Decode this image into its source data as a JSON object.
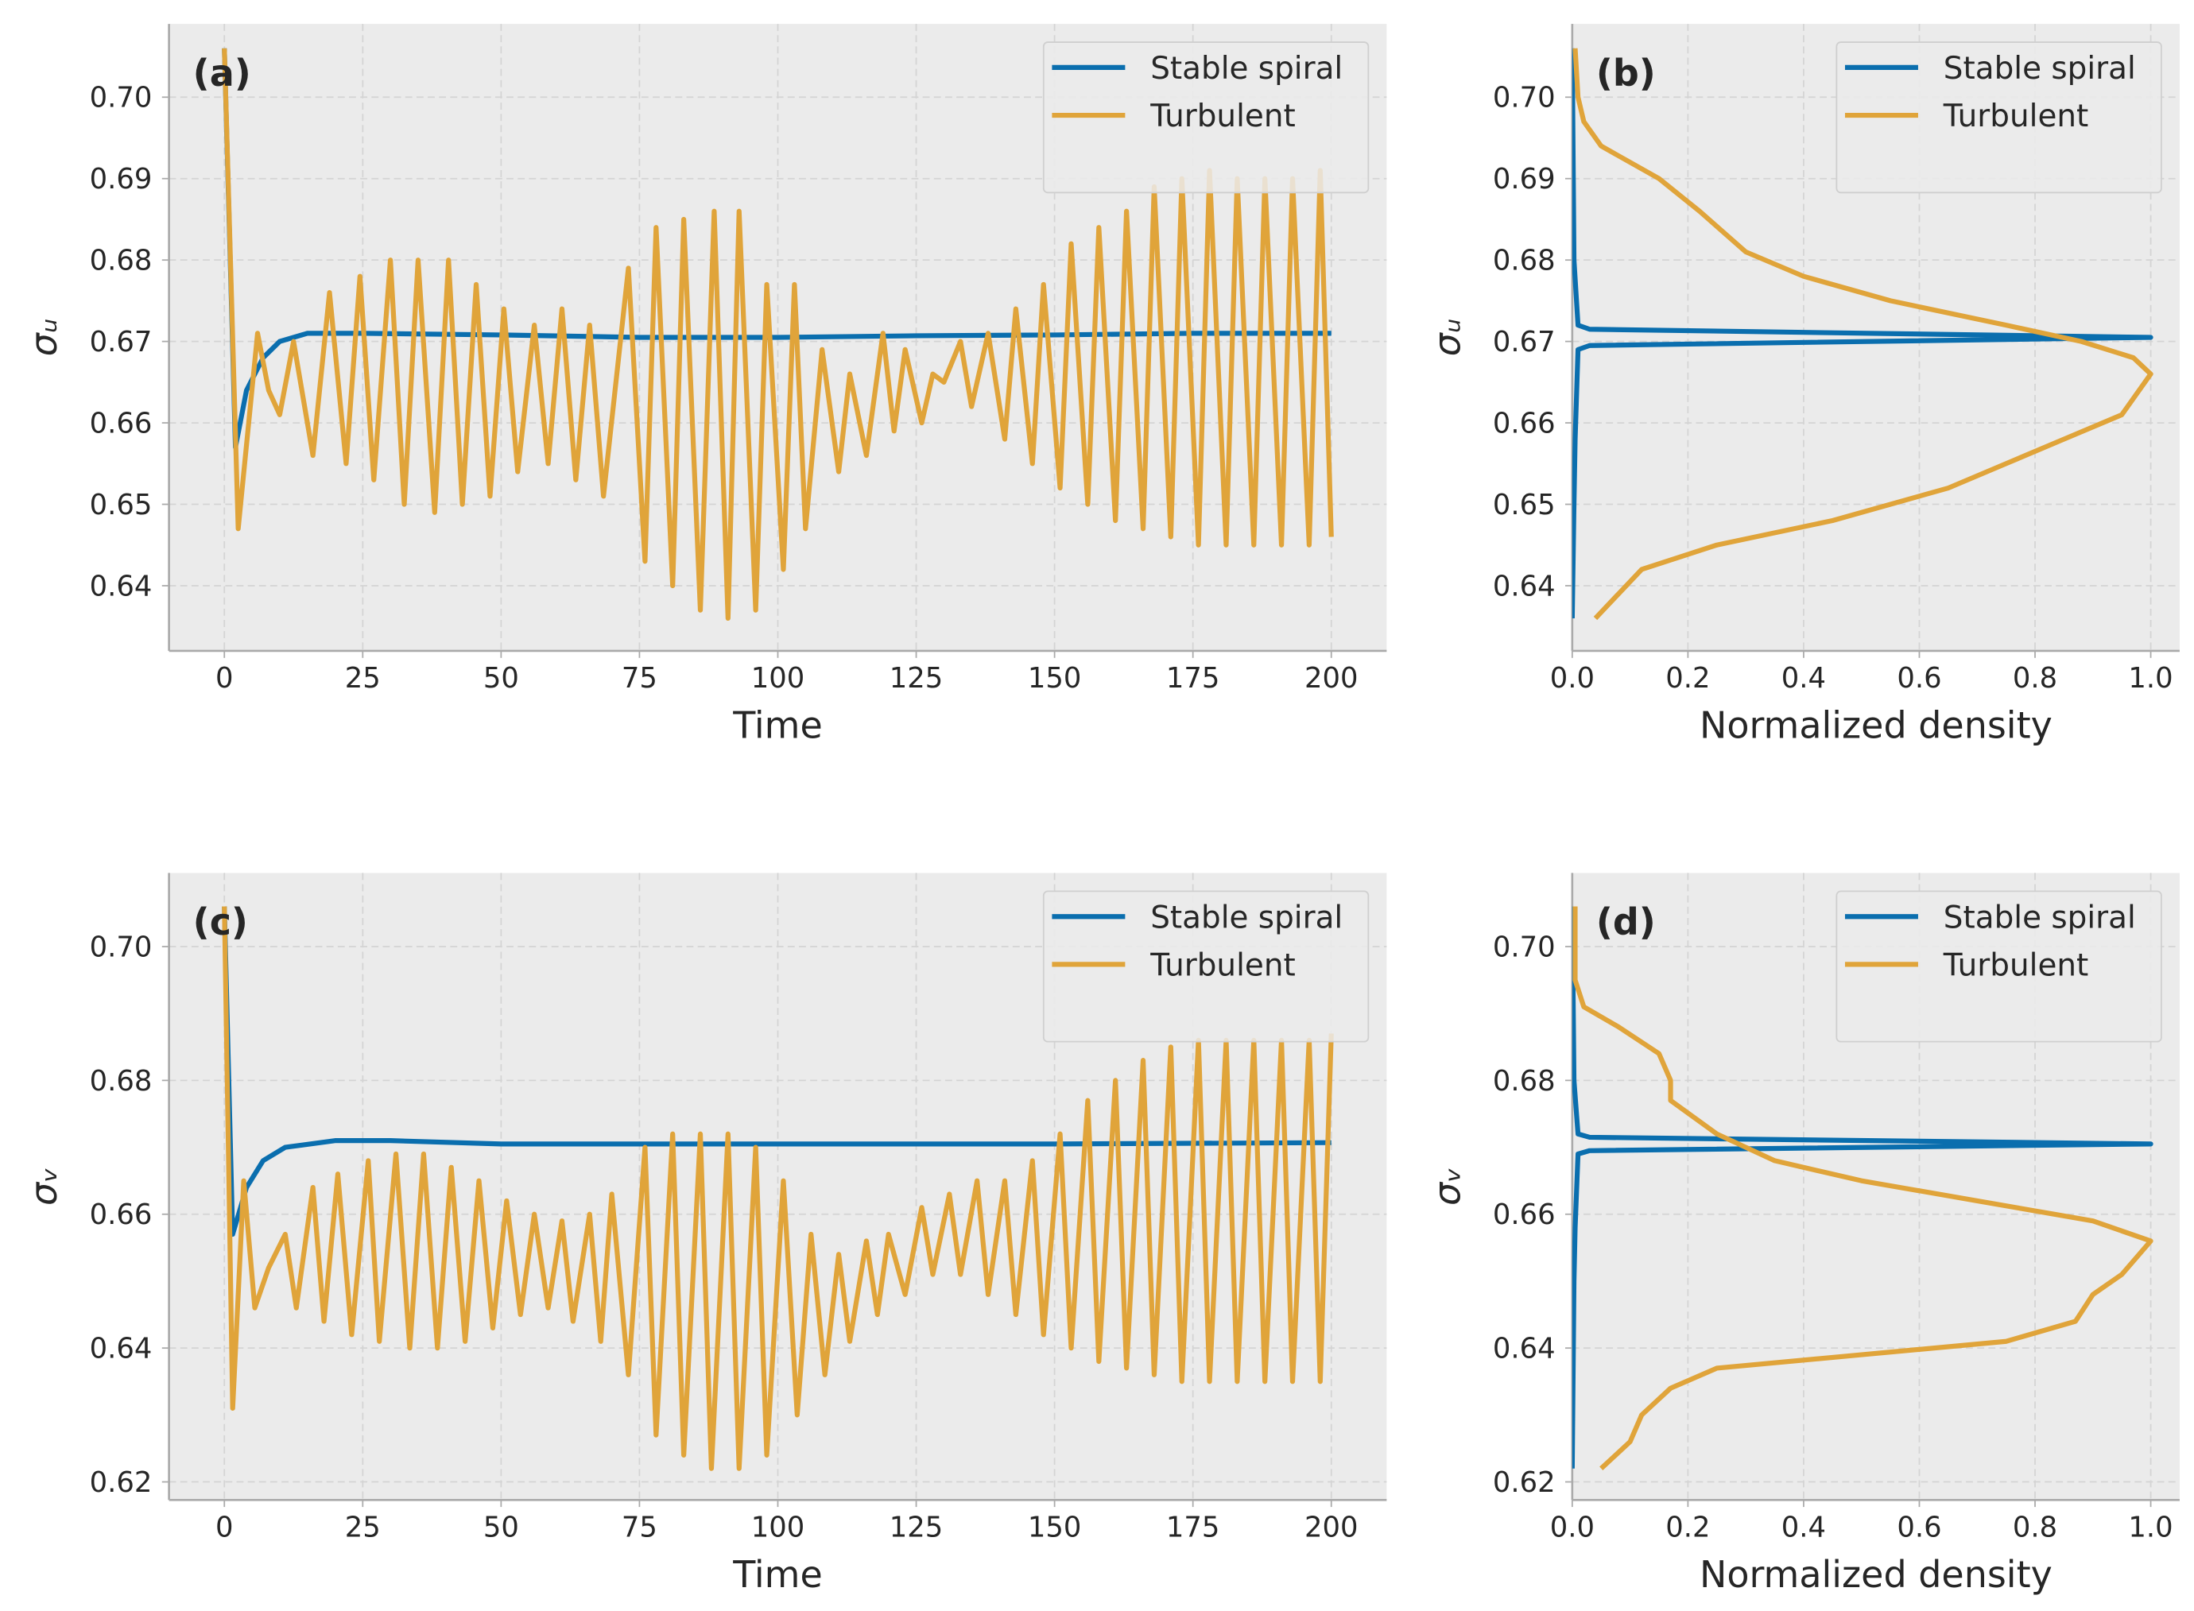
{
  "chart_data": [
    {
      "type": "line",
      "panel_label": "(a)",
      "xlabel": "Time",
      "ylabel": "σᵤ",
      "grid": true,
      "legend": "upper right",
      "xlim": [
        -10,
        210
      ],
      "ylim": [
        0.632,
        0.709
      ],
      "xticks": [
        0,
        25,
        50,
        75,
        100,
        125,
        150,
        175,
        200
      ],
      "yticks": [
        0.64,
        0.65,
        0.66,
        0.67,
        0.68,
        0.69,
        {
          "value": 0.7,
          "label": "0.70"
        }
      ],
      "series": [
        {
          "name": "Stable spiral",
          "color": "#0a6eae",
          "x": [
            0,
            2,
            4,
            7,
            10,
            15,
            25,
            50,
            75,
            100,
            125,
            150,
            175,
            200
          ],
          "values": [
            0.706,
            0.657,
            0.664,
            0.668,
            0.67,
            0.671,
            0.671,
            0.6708,
            0.6705,
            0.6705,
            0.6707,
            0.6708,
            0.671,
            0.671
          ]
        },
        {
          "name": "Turbulent",
          "color": "#e0a43a",
          "x": [
            0,
            2.5,
            6,
            8,
            10,
            12.5,
            16,
            19,
            22,
            24.5,
            27,
            30,
            32.5,
            35,
            38,
            40.5,
            43,
            45.5,
            48,
            50.5,
            53,
            56,
            58.5,
            61,
            63.5,
            66,
            68.5,
            73,
            76,
            78,
            81,
            83,
            86,
            88.5,
            91,
            93,
            96,
            98,
            101,
            103,
            105,
            108,
            111,
            113,
            116,
            119,
            121,
            123,
            126,
            128,
            130,
            133,
            135,
            138,
            141,
            143,
            146,
            148,
            151,
            153,
            156,
            158,
            161,
            163,
            166,
            168,
            171,
            173,
            176,
            178,
            181,
            183,
            186,
            188,
            191,
            193,
            196,
            198,
            200
          ],
          "values": [
            0.706,
            0.647,
            0.671,
            0.664,
            0.661,
            0.67,
            0.656,
            0.676,
            0.655,
            0.678,
            0.653,
            0.68,
            0.65,
            0.68,
            0.649,
            0.68,
            0.65,
            0.677,
            0.651,
            0.674,
            0.654,
            0.672,
            0.655,
            0.674,
            0.653,
            0.672,
            0.651,
            0.679,
            0.643,
            0.684,
            0.64,
            0.685,
            0.637,
            0.686,
            0.636,
            0.686,
            0.637,
            0.677,
            0.642,
            0.677,
            0.647,
            0.669,
            0.654,
            0.666,
            0.656,
            0.671,
            0.659,
            0.669,
            0.66,
            0.666,
            0.665,
            0.67,
            0.662,
            0.671,
            0.658,
            0.674,
            0.655,
            0.677,
            0.652,
            0.682,
            0.65,
            0.684,
            0.648,
            0.686,
            0.647,
            0.689,
            0.646,
            0.69,
            0.645,
            0.691,
            0.645,
            0.69,
            0.645,
            0.69,
            0.645,
            0.69,
            0.645,
            0.691,
            0.646
          ]
        }
      ]
    },
    {
      "type": "line",
      "panel_label": "(b)",
      "xlabel": "Normalized density",
      "ylabel": "σᵤ",
      "grid": true,
      "legend": "upper right",
      "xlim": [
        0,
        1.05
      ],
      "ylim": [
        0.632,
        0.709
      ],
      "xticks": [
        {
          "value": 0,
          "label": "0.0"
        },
        0.2,
        0.4,
        0.6,
        0.8,
        {
          "value": 1,
          "label": "1.0"
        }
      ],
      "yticks": [
        0.64,
        0.65,
        0.66,
        0.67,
        0.68,
        0.69,
        {
          "value": 0.7,
          "label": "0.70"
        }
      ],
      "series": [
        {
          "name": "Stable spiral",
          "color": "#0a6eae",
          "x": [
            0,
            0.003,
            0.005,
            0.01,
            0.03,
            1,
            0.03,
            0.01,
            0.003,
            0
          ],
          "values": [
            0.636,
            0.65,
            0.658,
            0.669,
            0.6695,
            0.6705,
            0.6715,
            0.672,
            0.68,
            0.706
          ]
        },
        {
          "name": "Turbulent",
          "color": "#e0a43a",
          "x": [
            0.04,
            0.08,
            0.12,
            0.25,
            0.45,
            0.65,
            0.75,
            0.85,
            0.95,
            1,
            0.97,
            0.88,
            0.75,
            0.55,
            0.4,
            0.3,
            0.22,
            0.15,
            0.05,
            0.02,
            0.01,
            0.005
          ],
          "values": [
            0.636,
            0.639,
            0.642,
            0.645,
            0.648,
            0.652,
            0.655,
            0.658,
            0.661,
            0.666,
            0.668,
            0.67,
            0.672,
            0.675,
            0.678,
            0.681,
            0.686,
            0.69,
            0.694,
            0.697,
            0.7,
            0.706
          ]
        }
      ]
    },
    {
      "type": "line",
      "panel_label": "(c)",
      "xlabel": "Time",
      "ylabel": "σᵥ",
      "grid": true,
      "legend": "upper right",
      "xlim": [
        -10,
        210
      ],
      "ylim": [
        0.6173,
        0.711
      ],
      "xticks": [
        0,
        25,
        50,
        75,
        100,
        125,
        150,
        175,
        200
      ],
      "yticks": [
        0.62,
        0.64,
        0.66,
        0.68,
        {
          "value": 0.7,
          "label": "0.70"
        }
      ],
      "series": [
        {
          "name": "Stable spiral",
          "color": "#0a6eae",
          "x": [
            0,
            1.5,
            4,
            7,
            11,
            20,
            30,
            50,
            100,
            150,
            200
          ],
          "values": [
            0.706,
            0.657,
            0.664,
            0.668,
            0.67,
            0.671,
            0.671,
            0.6705,
            0.6705,
            0.6705,
            0.6707
          ]
        },
        {
          "name": "Turbulent",
          "color": "#e0a43a",
          "x": [
            0,
            1.5,
            3.5,
            5.5,
            8,
            11,
            13,
            16,
            18,
            20.5,
            23,
            26,
            28,
            31,
            33.5,
            36,
            38.5,
            41,
            43.5,
            46,
            48.5,
            51,
            53.5,
            56,
            58.5,
            61,
            63,
            66,
            68,
            70,
            73,
            76,
            78,
            81,
            83,
            86,
            88,
            91,
            93,
            96,
            98,
            101,
            103.5,
            106,
            108.5,
            111,
            113,
            116,
            118,
            120,
            123,
            126,
            128,
            131,
            133,
            136,
            138,
            141,
            143,
            146,
            148,
            151,
            153,
            156,
            158,
            161,
            163,
            166,
            168,
            171,
            173,
            176,
            178,
            181,
            183,
            186,
            188,
            191,
            193,
            196,
            198,
            200
          ],
          "values": [
            0.706,
            0.631,
            0.665,
            0.646,
            0.652,
            0.657,
            0.646,
            0.664,
            0.644,
            0.666,
            0.642,
            0.668,
            0.641,
            0.669,
            0.64,
            0.669,
            0.64,
            0.667,
            0.641,
            0.665,
            0.643,
            0.662,
            0.645,
            0.66,
            0.646,
            0.659,
            0.644,
            0.66,
            0.641,
            0.663,
            0.636,
            0.67,
            0.627,
            0.672,
            0.624,
            0.672,
            0.622,
            0.672,
            0.622,
            0.67,
            0.624,
            0.665,
            0.63,
            0.657,
            0.636,
            0.654,
            0.641,
            0.656,
            0.645,
            0.657,
            0.648,
            0.661,
            0.651,
            0.663,
            0.651,
            0.665,
            0.648,
            0.665,
            0.645,
            0.668,
            0.642,
            0.672,
            0.64,
            0.677,
            0.638,
            0.68,
            0.637,
            0.683,
            0.636,
            0.685,
            0.635,
            0.686,
            0.635,
            0.686,
            0.635,
            0.686,
            0.635,
            0.686,
            0.635,
            0.686,
            0.635,
            0.687
          ]
        }
      ]
    },
    {
      "type": "line",
      "panel_label": "(d)",
      "xlabel": "Normalized density",
      "ylabel": "σᵥ",
      "grid": true,
      "legend": "upper right",
      "xlim": [
        0,
        1.05
      ],
      "ylim": [
        0.6173,
        0.711
      ],
      "xticks": [
        {
          "value": 0,
          "label": "0.0"
        },
        0.2,
        0.4,
        0.6,
        0.8,
        {
          "value": 1,
          "label": "1.0"
        }
      ],
      "yticks": [
        0.62,
        0.64,
        0.66,
        0.68,
        {
          "value": 0.7,
          "label": "0.70"
        }
      ],
      "series": [
        {
          "name": "Stable spiral",
          "color": "#0a6eae",
          "x": [
            0,
            0.003,
            0.005,
            0.01,
            0.03,
            1,
            0.03,
            0.01,
            0.003,
            0
          ],
          "values": [
            0.622,
            0.65,
            0.658,
            0.669,
            0.6695,
            0.6705,
            0.6715,
            0.672,
            0.68,
            0.706
          ]
        },
        {
          "name": "Turbulent",
          "color": "#e0a43a",
          "x": [
            0.05,
            0.1,
            0.12,
            0.17,
            0.25,
            0.5,
            0.75,
            0.87,
            0.9,
            0.95,
            1,
            0.9,
            0.7,
            0.5,
            0.35,
            0.25,
            0.17,
            0.17,
            0.15,
            0.08,
            0.02,
            0.005,
            0.005
          ],
          "values": [
            0.622,
            0.626,
            0.63,
            0.634,
            0.637,
            0.639,
            0.641,
            0.644,
            0.648,
            0.651,
            0.656,
            0.659,
            0.662,
            0.665,
            0.668,
            0.672,
            0.677,
            0.68,
            0.684,
            0.688,
            0.691,
            0.695,
            0.706
          ]
        }
      ]
    }
  ]
}
